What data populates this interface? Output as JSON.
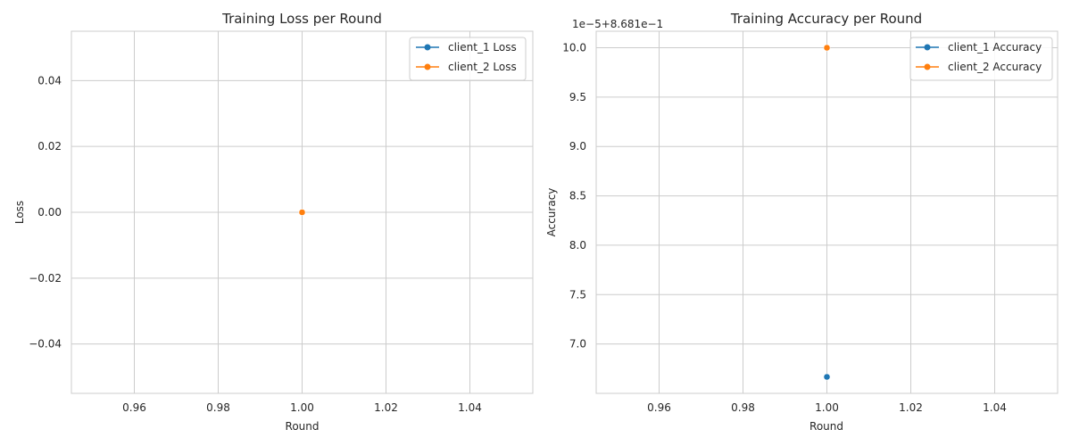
{
  "colors": {
    "client_1": "#1f77b4",
    "client_2": "#ff7f0e",
    "grid": "#cccccc"
  },
  "chart_data": [
    {
      "type": "line",
      "title": "Training Loss per Round",
      "xlabel": "Round",
      "ylabel": "Loss",
      "xlim": [
        0.945,
        1.055
      ],
      "ylim": [
        -0.055,
        0.055
      ],
      "xticks": [
        0.96,
        0.98,
        1.0,
        1.02,
        1.04
      ],
      "xtick_labels": [
        "0.96",
        "0.98",
        "1.00",
        "1.02",
        "1.04"
      ],
      "yticks": [
        -0.04,
        -0.02,
        0.0,
        0.02,
        0.04
      ],
      "ytick_labels": [
        "−0.04",
        "−0.02",
        "0.00",
        "0.02",
        "0.04"
      ],
      "grid": true,
      "legend_position": "top-right",
      "series": [
        {
          "name": "client_1 Loss",
          "color": "#1f77b4",
          "points": [
            [
              1.0,
              0.0
            ]
          ]
        },
        {
          "name": "client_2 Loss",
          "color": "#ff7f0e",
          "points": [
            [
              1.0,
              0.0
            ]
          ]
        }
      ]
    },
    {
      "type": "line",
      "title": "Training Accuracy per Round",
      "xlabel": "Round",
      "ylabel": "Accuracy",
      "offset_text": "1e−5+8.681e−1",
      "xlim": [
        0.945,
        1.055
      ],
      "ylim": [
        6.5,
        10.167
      ],
      "xticks": [
        0.96,
        0.98,
        1.0,
        1.02,
        1.04
      ],
      "xtick_labels": [
        "0.96",
        "0.98",
        "1.00",
        "1.02",
        "1.04"
      ],
      "yticks": [
        7.0,
        7.5,
        8.0,
        8.5,
        9.0,
        9.5,
        10.0
      ],
      "ytick_labels": [
        "7.0",
        "7.5",
        "8.0",
        "8.5",
        "9.0",
        "9.5",
        "10.0"
      ],
      "grid": true,
      "legend_position": "top-right",
      "series": [
        {
          "name": "client_1 Accuracy",
          "color": "#1f77b4",
          "points": [
            [
              1.0,
              6.667
            ]
          ]
        },
        {
          "name": "client_2 Accuracy",
          "color": "#ff7f0e",
          "points": [
            [
              1.0,
              10.0
            ]
          ]
        }
      ]
    }
  ]
}
